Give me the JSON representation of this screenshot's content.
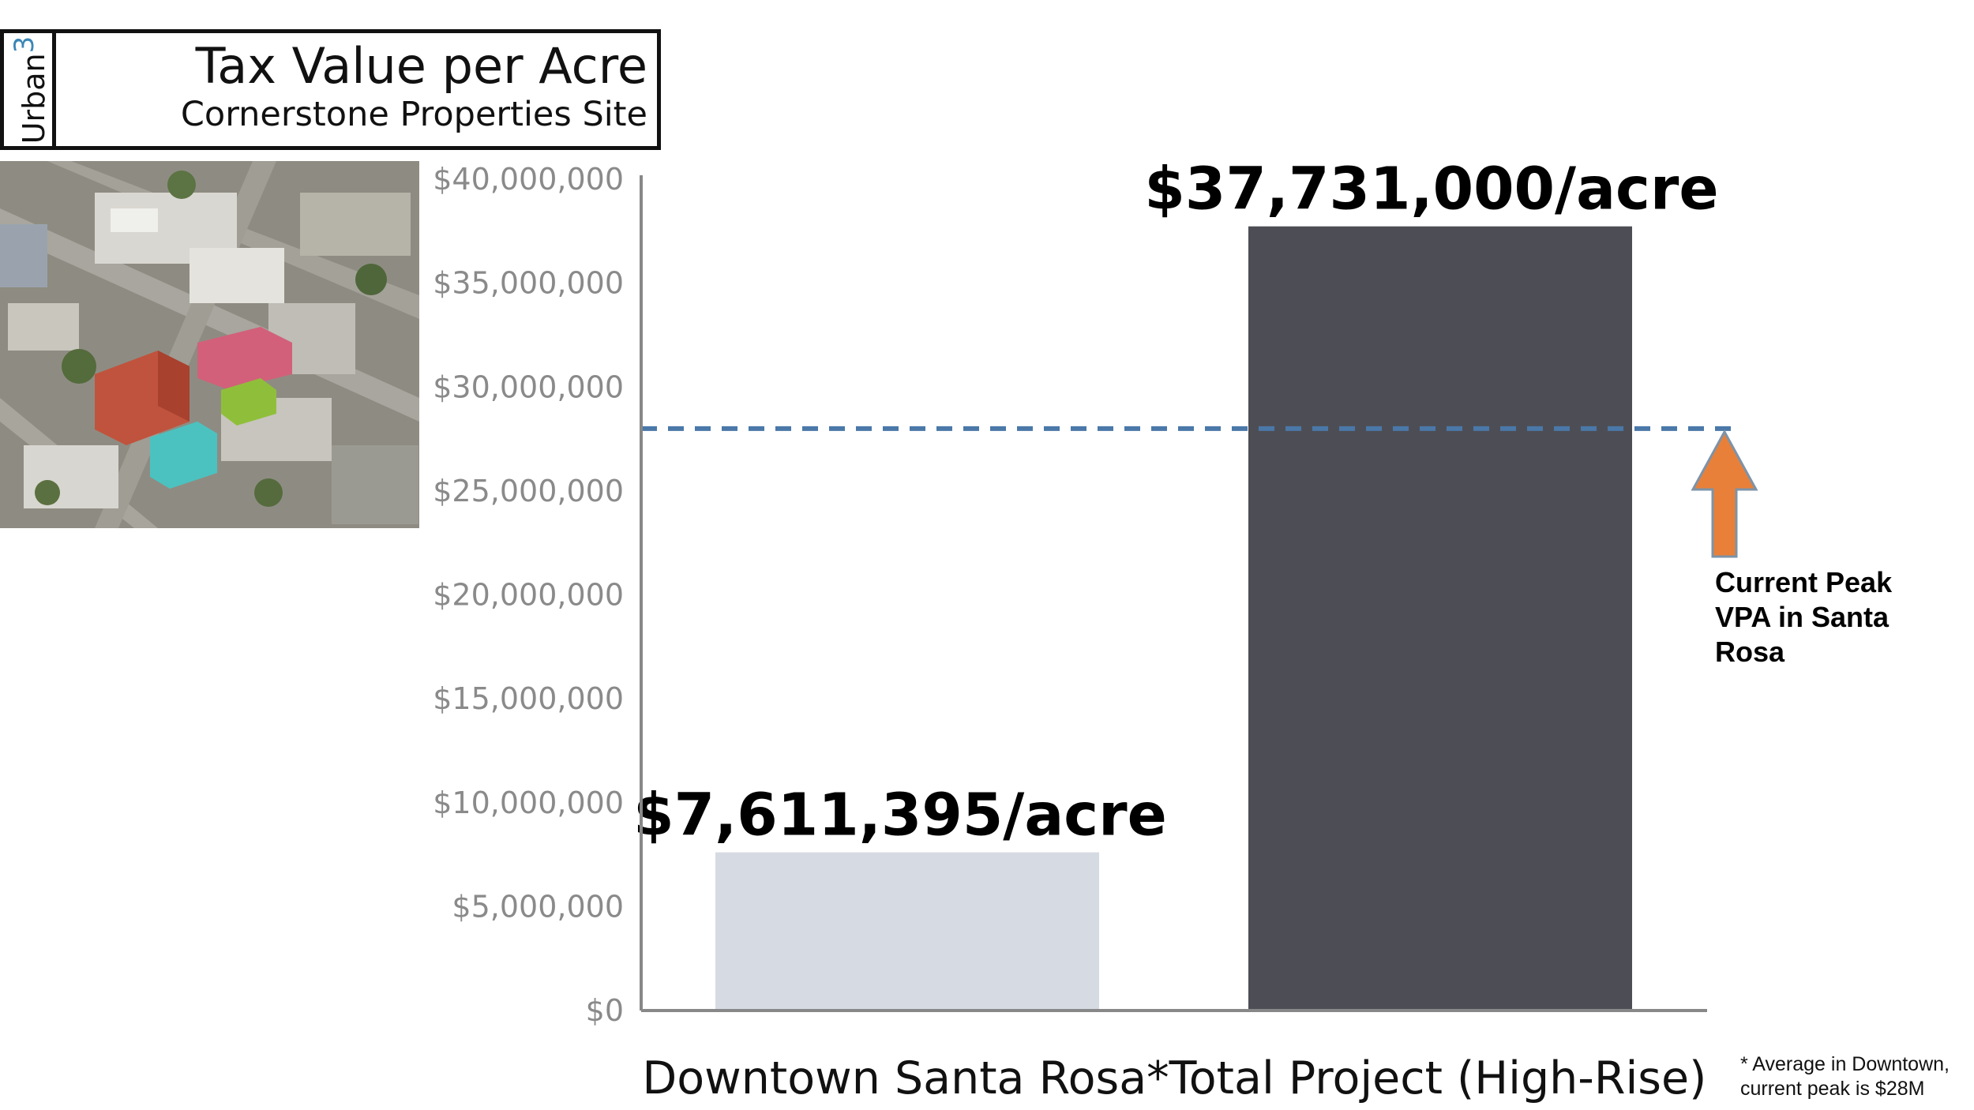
{
  "header": {
    "logo_text": "Urban",
    "logo_superscript": "3",
    "title": "Tax Value per Acre",
    "subtitle": "Cornerstone Properties Site"
  },
  "annotation": {
    "peak_label": "Current Peak\nVPA in Santa\nRosa",
    "footnote": "* Average in Downtown,\ncurrent peak is $28M"
  },
  "colors": {
    "bar_downtown": "#d6dae3",
    "bar_project": "#4d4e55",
    "reference_line": "#4a78a8",
    "arrow": "#e8803a",
    "axis": "#888888"
  },
  "chart_data": {
    "type": "bar",
    "title": "Tax Value per Acre",
    "subtitle": "Cornerstone Properties Site",
    "categories": [
      "Downtown Santa Rosa*",
      "Total Project (High-Rise)"
    ],
    "values": [
      7611395,
      37731000
    ],
    "data_labels": [
      "$7,611,395/acre",
      "$37,731,000/acre"
    ],
    "ylim": [
      0,
      40000000
    ],
    "yticks": [
      0,
      5000000,
      10000000,
      15000000,
      20000000,
      25000000,
      30000000,
      35000000,
      40000000
    ],
    "ytick_labels": [
      "$0",
      "$5,000,000",
      "$10,000,000",
      "$15,000,000",
      "$20,000,000",
      "$25,000,000",
      "$30,000,000",
      "$35,000,000",
      "$40,000,000"
    ],
    "grid": false,
    "reference_line": {
      "value": 28000000,
      "style": "dashed",
      "label": "Current Peak VPA in Santa Rosa"
    }
  }
}
